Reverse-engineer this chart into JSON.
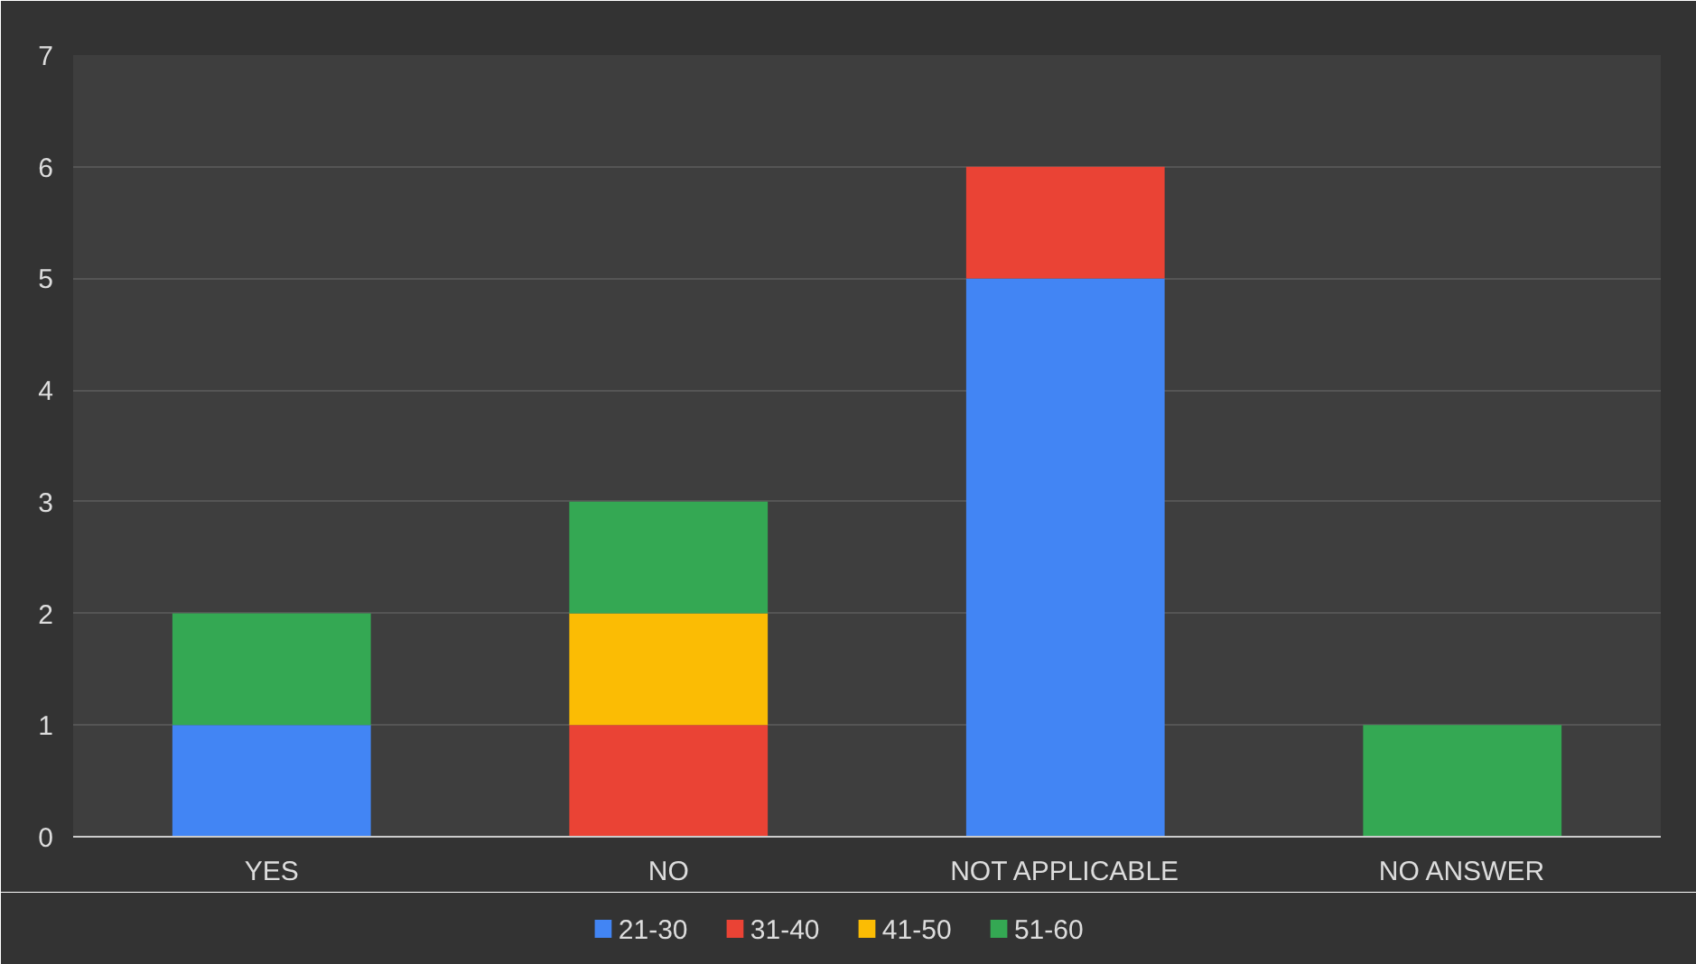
{
  "chart_data": {
    "type": "bar",
    "stacked": true,
    "categories": [
      "YES",
      "NO",
      "NOT APPLICABLE",
      "NO ANSWER"
    ],
    "series": [
      {
        "name": "21-30",
        "color": "#4285f4",
        "values": [
          1,
          0,
          5,
          0
        ]
      },
      {
        "name": "31-40",
        "color": "#ea4335",
        "values": [
          0,
          1,
          1,
          0
        ]
      },
      {
        "name": "41-50",
        "color": "#fbbc04",
        "values": [
          0,
          1,
          0,
          0
        ]
      },
      {
        "name": "51-60",
        "color": "#34a853",
        "values": [
          1,
          1,
          0,
          1
        ]
      }
    ],
    "ylim": [
      0,
      7
    ],
    "yticks": [
      0,
      1,
      2,
      3,
      4,
      5,
      6,
      7
    ],
    "grid": "y",
    "legend": "bottom"
  }
}
